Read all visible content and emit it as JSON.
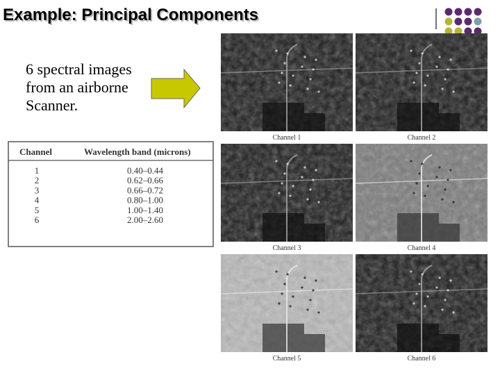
{
  "header": {
    "title": "Example: Principal Components"
  },
  "body": {
    "lines": [
      "6 spectral images",
      "from an airborne",
      "Scanner."
    ]
  },
  "table": {
    "columns": [
      "Channel",
      "Wavelength band (microns)"
    ],
    "rows": [
      [
        "1",
        "0.40–0.44"
      ],
      [
        "2",
        "0.62–0.66"
      ],
      [
        "3",
        "0.66–0.72"
      ],
      [
        "4",
        "0.80–1.00"
      ],
      [
        "5",
        "1.00–1.40"
      ],
      [
        "6",
        "2.00–2.60"
      ]
    ]
  },
  "images": [
    {
      "caption": "Channel 1"
    },
    {
      "caption": "Channel 2"
    },
    {
      "caption": "Channel 3"
    },
    {
      "caption": "Channel 4"
    },
    {
      "caption": "Channel 5"
    },
    {
      "caption": "Channel 6"
    }
  ]
}
